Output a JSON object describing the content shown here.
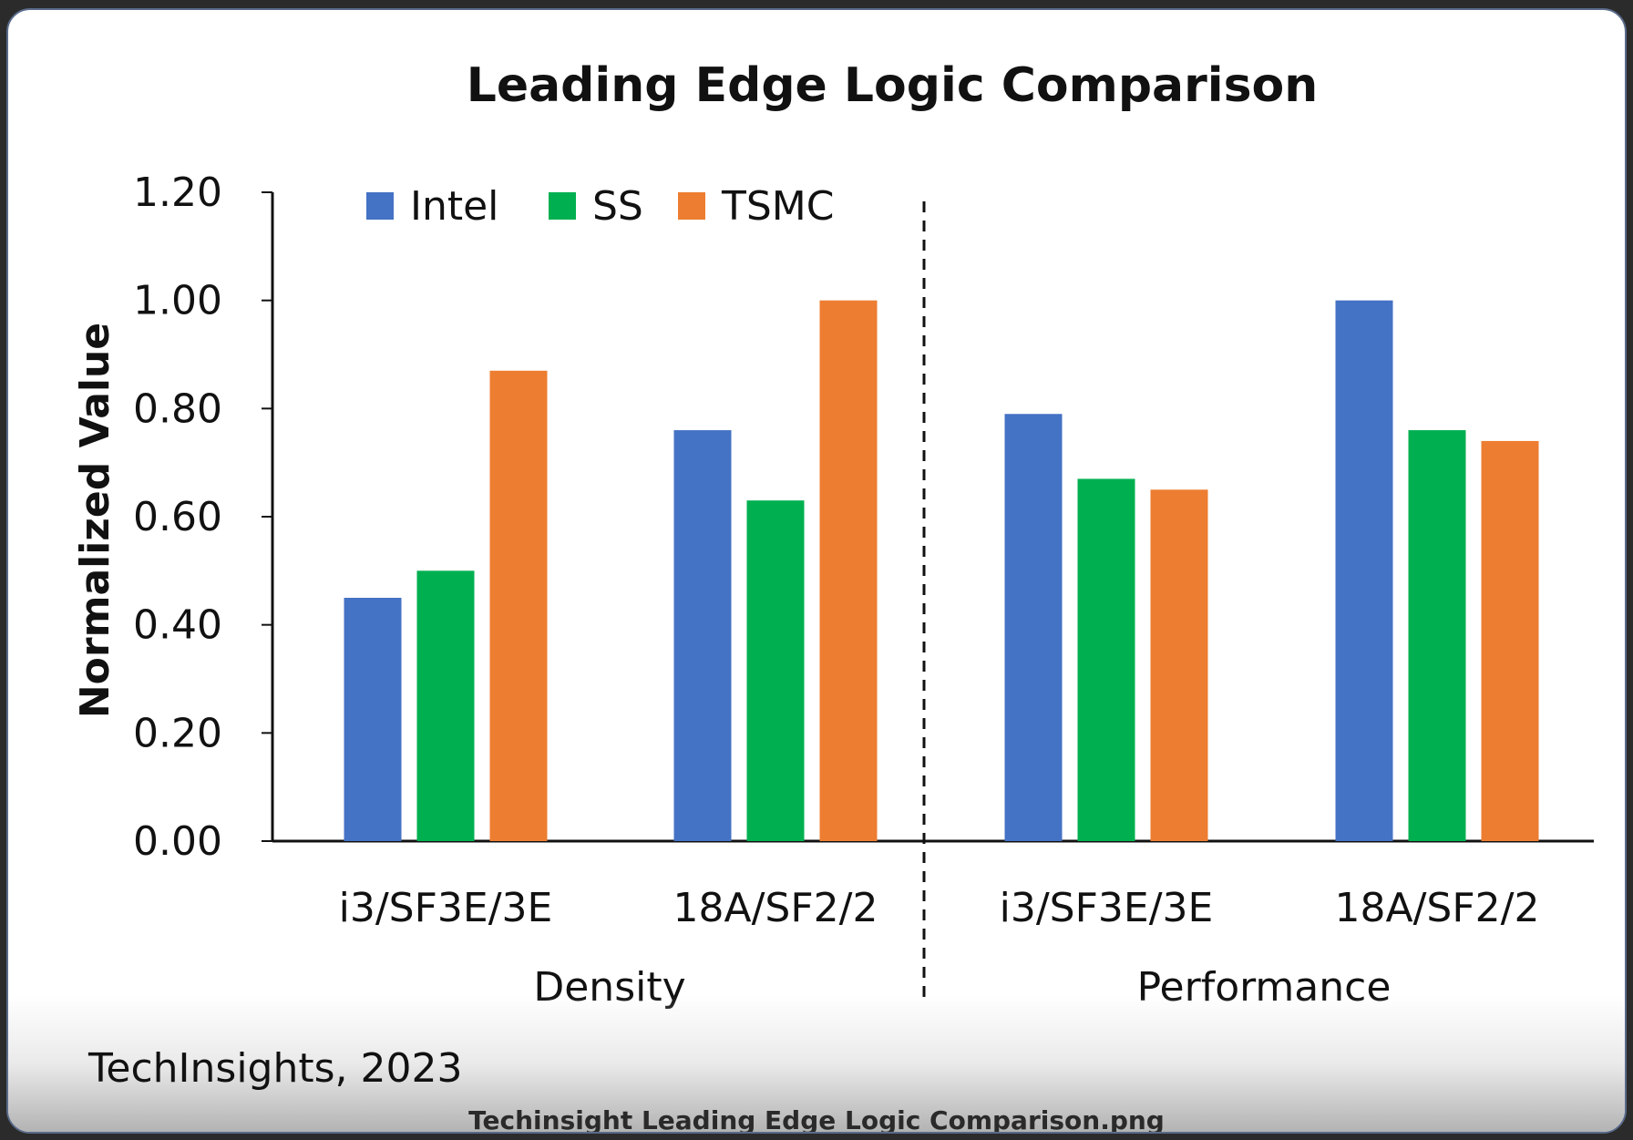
{
  "chart_data": {
    "type": "bar",
    "title": "Leading Edge Logic Comparison",
    "xlabel": "",
    "ylabel": "Normalized Value",
    "ylim": [
      0,
      1.2
    ],
    "yticks": [
      "0.00",
      "0.20",
      "0.40",
      "0.60",
      "0.80",
      "1.00",
      "1.20"
    ],
    "legend_position": "top-left",
    "grid": false,
    "groups": [
      {
        "name": "Density",
        "categories": [
          "i3/SF3E/3E",
          "18A/SF2/2"
        ]
      },
      {
        "name": "Performance",
        "categories": [
          "i3/SF3E/3E",
          "18A/SF2/2"
        ]
      }
    ],
    "categories": [
      "i3/SF3E/3E",
      "18A/SF2/2",
      "i3/SF3E/3E",
      "18A/SF2/2"
    ],
    "series": [
      {
        "name": "Intel",
        "color": "#4472C4",
        "values": [
          0.45,
          0.76,
          0.79,
          1.0
        ]
      },
      {
        "name": "SS",
        "color": "#00B050",
        "values": [
          0.5,
          0.63,
          0.67,
          0.76
        ]
      },
      {
        "name": "TSMC",
        "color": "#ED7D31",
        "values": [
          0.87,
          1.0,
          0.65,
          0.74
        ]
      }
    ]
  },
  "source": "TechInsights, 2023",
  "caption": "Techinsight Leading Edge Logic Comparison.png"
}
